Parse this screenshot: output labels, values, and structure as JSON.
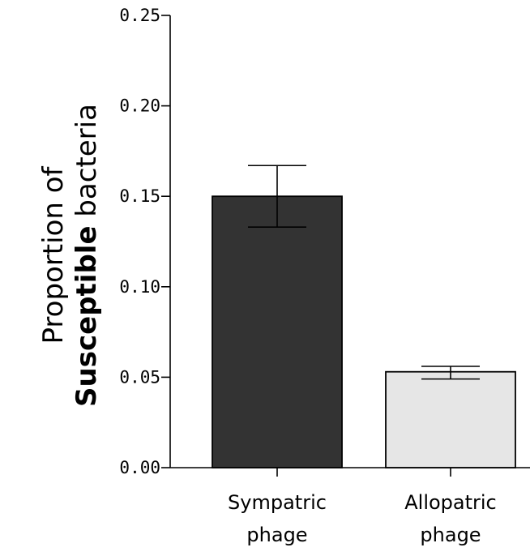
{
  "chart_data": {
    "type": "bar",
    "categories": [
      [
        "Sympatric",
        "phage"
      ],
      [
        "Allopatric",
        "phage"
      ]
    ],
    "values": [
      0.15,
      0.053
    ],
    "error_low": [
      0.133,
      0.049
    ],
    "error_high": [
      0.167,
      0.056
    ],
    "bar_colors": [
      "#333333",
      "#e6e6e6"
    ],
    "ylabel": {
      "line1": "Proportion of",
      "line2_bold": "Susceptible",
      "line2_rest": " bacteria"
    },
    "xlabel": "",
    "ylim": [
      0,
      0.25
    ],
    "yticks": [
      "0.00",
      "0.05",
      "0.10",
      "0.15",
      "0.20",
      "0.25"
    ],
    "ytick_values": [
      0,
      0.05,
      0.1,
      0.15,
      0.2,
      0.25
    ],
    "grid": false
  }
}
